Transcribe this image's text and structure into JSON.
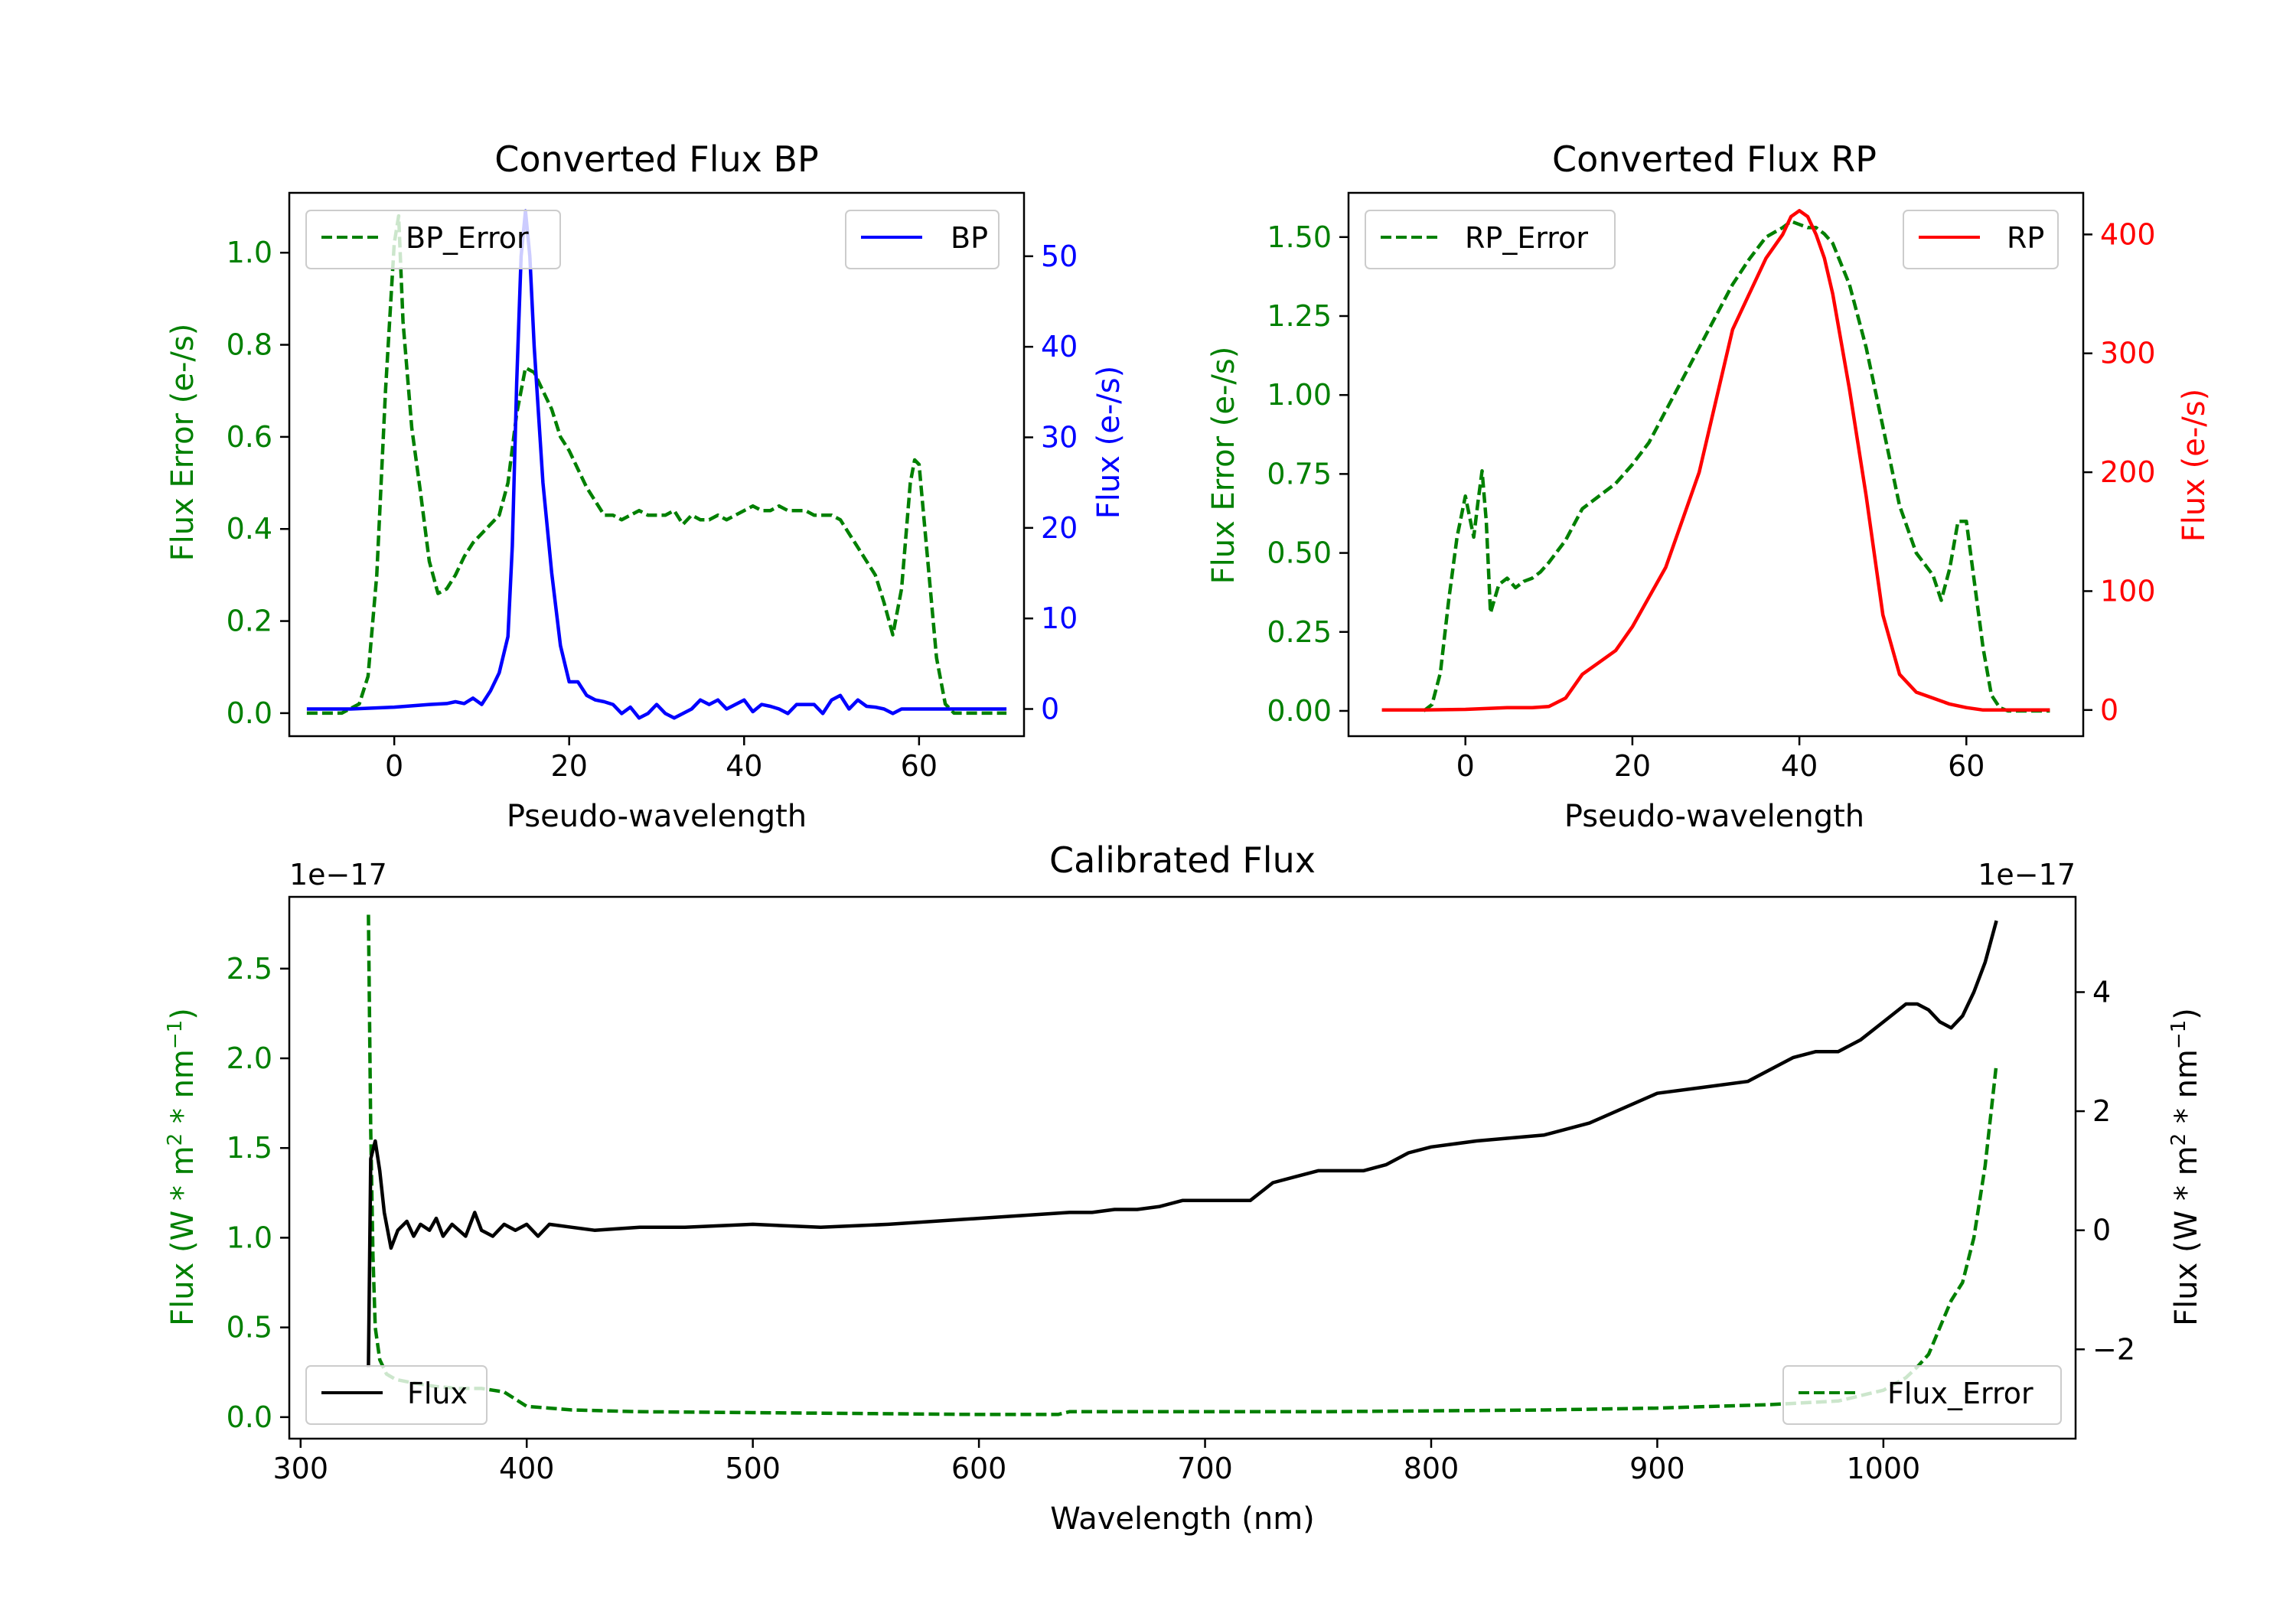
{
  "chart_data": [
    {
      "type": "line",
      "title": "Converted Flux BP",
      "xlabel": "Pseudo-wavelength",
      "ylabel_left": "Flux Error (e-/s)",
      "ylabel_right": "Flux (e-/s)",
      "xlim": [
        -12,
        72
      ],
      "ylim_left": [
        -0.05,
        1.13
      ],
      "ylim_right": [
        -3,
        57
      ],
      "xticks": [
        0,
        20,
        40,
        60
      ],
      "yticks_left": [
        0.0,
        0.2,
        0.4,
        0.6,
        0.8,
        1.0
      ],
      "yticks_right": [
        0,
        10,
        20,
        30,
        40,
        50
      ],
      "series": [
        {
          "name": "BP_Error",
          "axis": "left",
          "color": "#008000",
          "style": "dashed",
          "x": [
            -10,
            -6,
            -4,
            -3,
            -2,
            -1,
            0,
            0.5,
            1,
            2,
            3,
            4,
            5,
            6,
            7,
            8,
            9,
            10,
            11,
            12,
            13,
            14,
            15,
            16,
            17,
            18,
            19,
            20,
            21,
            22,
            23,
            24,
            25,
            26,
            27,
            28,
            29,
            30,
            31,
            32,
            33,
            34,
            35,
            36,
            37,
            38,
            39,
            40,
            41,
            42,
            43,
            44,
            45,
            46,
            47,
            48,
            49,
            50,
            51,
            52,
            53,
            54,
            55,
            56,
            57,
            58,
            59,
            59.5,
            60,
            61,
            62,
            63,
            64,
            65,
            66,
            68,
            70
          ],
          "y": [
            0,
            0,
            0.02,
            0.08,
            0.3,
            0.7,
            1.02,
            1.08,
            0.85,
            0.62,
            0.48,
            0.33,
            0.26,
            0.27,
            0.3,
            0.34,
            0.37,
            0.39,
            0.41,
            0.43,
            0.5,
            0.65,
            0.75,
            0.74,
            0.7,
            0.66,
            0.6,
            0.57,
            0.53,
            0.49,
            0.46,
            0.43,
            0.43,
            0.42,
            0.43,
            0.44,
            0.43,
            0.43,
            0.43,
            0.44,
            0.41,
            0.43,
            0.42,
            0.42,
            0.43,
            0.42,
            0.43,
            0.44,
            0.45,
            0.44,
            0.44,
            0.45,
            0.44,
            0.44,
            0.44,
            0.43,
            0.43,
            0.43,
            0.42,
            0.39,
            0.36,
            0.33,
            0.3,
            0.24,
            0.17,
            0.27,
            0.5,
            0.55,
            0.54,
            0.33,
            0.12,
            0.02,
            0.0,
            0,
            0,
            0,
            0
          ]
        },
        {
          "name": "BP",
          "axis": "right",
          "color": "#0000ff",
          "style": "solid",
          "x": [
            -10,
            -5,
            0,
            4,
            6,
            7,
            8,
            9,
            10,
            11,
            12,
            13,
            13.5,
            14,
            14.5,
            15,
            15.5,
            16,
            17,
            18,
            19,
            20,
            21,
            22,
            23,
            24,
            25,
            26,
            27,
            28,
            29,
            30,
            31,
            32,
            33,
            34,
            35,
            36,
            37,
            38,
            39,
            40,
            41,
            42,
            43,
            44,
            45,
            46,
            47,
            48,
            49,
            50,
            51,
            52,
            53,
            54,
            55,
            56,
            57,
            58,
            60,
            62,
            65,
            70
          ],
          "y": [
            0,
            0,
            0.2,
            0.5,
            0.6,
            0.8,
            0.6,
            1.2,
            0.5,
            2,
            4,
            8,
            18,
            36,
            50,
            55,
            50,
            40,
            25,
            15,
            7,
            3,
            3,
            1.5,
            1,
            0.8,
            0.5,
            -0.5,
            0.2,
            -1,
            -0.5,
            0.5,
            -0.5,
            -1,
            -0.5,
            0,
            1,
            0.5,
            1,
            0,
            0.5,
            1,
            -0.3,
            0.5,
            0.3,
            0,
            -0.5,
            0.5,
            0.5,
            0.5,
            -0.5,
            1,
            1.5,
            0,
            1,
            0.3,
            0.2,
            0,
            -0.5,
            0,
            0,
            0,
            0,
            0
          ]
        }
      ],
      "legend": [
        {
          "label": "BP_Error",
          "position": "upper left"
        },
        {
          "label": "BP",
          "position": "upper right"
        }
      ]
    },
    {
      "type": "line",
      "title": "Converted Flux RP",
      "xlabel": "Pseudo-wavelength",
      "ylabel_left": "Flux Error (e-/s)",
      "ylabel_right": "Flux (e-/s)",
      "xlim": [
        -14,
        74
      ],
      "ylim_left": [
        -0.08,
        1.64
      ],
      "ylim_right": [
        -22,
        435
      ],
      "xticks": [
        0,
        20,
        40,
        60
      ],
      "yticks_left": [
        0.0,
        0.25,
        0.5,
        0.75,
        1.0,
        1.25,
        1.5
      ],
      "yticks_right": [
        0,
        100,
        200,
        300,
        400
      ],
      "series": [
        {
          "name": "RP_Error",
          "axis": "left",
          "color": "#008000",
          "style": "dashed",
          "x": [
            -5,
            -4,
            -3,
            -2,
            -1,
            0,
            1,
            1.5,
            2,
            2.5,
            3,
            4,
            5,
            6,
            7,
            8,
            9,
            10,
            12,
            14,
            16,
            18,
            20,
            22,
            24,
            26,
            28,
            30,
            32,
            34,
            36,
            38,
            39,
            40,
            41,
            42,
            43,
            44,
            46,
            48,
            50,
            52,
            54,
            56,
            57,
            58,
            59,
            60,
            61,
            62,
            63,
            64,
            65,
            70
          ],
          "y": [
            0,
            0.02,
            0.12,
            0.35,
            0.55,
            0.68,
            0.55,
            0.66,
            0.76,
            0.6,
            0.31,
            0.4,
            0.42,
            0.39,
            0.41,
            0.42,
            0.44,
            0.47,
            0.54,
            0.64,
            0.68,
            0.72,
            0.78,
            0.85,
            0.95,
            1.05,
            1.15,
            1.25,
            1.35,
            1.43,
            1.5,
            1.53,
            1.55,
            1.54,
            1.53,
            1.53,
            1.51,
            1.48,
            1.35,
            1.15,
            0.9,
            0.65,
            0.5,
            0.43,
            0.35,
            0.45,
            0.6,
            0.6,
            0.4,
            0.2,
            0.05,
            0.01,
            0,
            0
          ]
        },
        {
          "name": "RP",
          "axis": "right",
          "color": "#ff0000",
          "style": "solid",
          "x": [
            -10,
            -5,
            0,
            5,
            8,
            10,
            12,
            14,
            16,
            18,
            20,
            22,
            24,
            26,
            28,
            30,
            32,
            34,
            36,
            38,
            39,
            40,
            41,
            42,
            43,
            44,
            45,
            46,
            48,
            50,
            52,
            54,
            56,
            58,
            60,
            62,
            65,
            70
          ],
          "y": [
            0,
            0,
            0.5,
            2,
            2,
            3,
            10,
            30,
            40,
            50,
            70,
            95,
            120,
            160,
            200,
            260,
            320,
            350,
            380,
            400,
            415,
            420,
            415,
            400,
            380,
            350,
            310,
            270,
            180,
            80,
            30,
            15,
            10,
            5,
            2,
            0,
            0,
            0
          ]
        }
      ],
      "legend": [
        {
          "label": "RP_Error",
          "position": "upper left"
        },
        {
          "label": "RP",
          "position": "upper right"
        }
      ]
    },
    {
      "type": "line",
      "title": "Calibrated Flux",
      "xlabel": "Wavelength (nm)",
      "ylabel_left": "Flux (W * m$^2$ * nm$^{-1}$)",
      "ylabel_right": "Flux (W * m$^2$ * nm$^{-1}$)",
      "offset_left": "1e−17",
      "offset_right": "1e−17",
      "xlim": [
        295,
        1085
      ],
      "ylim_left": [
        -0.12,
        2.9
      ],
      "ylim_right": [
        -3.5,
        5.6
      ],
      "xticks": [
        300,
        400,
        500,
        600,
        700,
        800,
        900,
        1000
      ],
      "yticks_left": [
        0.0,
        0.5,
        1.0,
        1.5,
        2.0,
        2.5
      ],
      "yticks_right": [
        -2,
        0,
        2,
        4
      ],
      "series": [
        {
          "name": "Flux_Error",
          "axis": "left",
          "color": "#008000",
          "style": "dashed",
          "x": [
            330,
            331,
            332,
            333,
            335,
            338,
            342,
            350,
            360,
            370,
            380,
            385,
            390,
            400,
            410,
            420,
            450,
            500,
            550,
            600,
            635,
            640,
            700,
            750,
            800,
            850,
            900,
            950,
            980,
            1000,
            1010,
            1015,
            1020,
            1025,
            1030,
            1035,
            1040,
            1045,
            1050
          ],
          "y": [
            2.8,
            1.6,
            0.9,
            0.5,
            0.32,
            0.24,
            0.21,
            0.19,
            0.17,
            0.16,
            0.16,
            0.15,
            0.14,
            0.06,
            0.05,
            0.04,
            0.03,
            0.025,
            0.02,
            0.015,
            0.015,
            0.03,
            0.03,
            0.03,
            0.035,
            0.04,
            0.05,
            0.07,
            0.09,
            0.15,
            0.22,
            0.28,
            0.35,
            0.5,
            0.65,
            0.75,
            1.0,
            1.4,
            1.97
          ]
        },
        {
          "name": "Flux",
          "axis": "right",
          "color": "#000000",
          "style": "solid",
          "x": [
            330,
            331,
            333,
            335,
            337,
            340,
            343,
            347,
            350,
            353,
            357,
            360,
            363,
            367,
            370,
            373,
            377,
            380,
            385,
            390,
            395,
            400,
            405,
            410,
            420,
            430,
            450,
            470,
            500,
            530,
            560,
            600,
            640,
            650,
            660,
            670,
            680,
            690,
            700,
            710,
            720,
            730,
            740,
            750,
            760,
            770,
            780,
            790,
            800,
            820,
            850,
            870,
            900,
            920,
            940,
            950,
            960,
            970,
            980,
            990,
            1000,
            1010,
            1015,
            1020,
            1025,
            1030,
            1035,
            1040,
            1045,
            1050
          ],
          "y": [
            -2.3,
            1.2,
            1.5,
            1.0,
            0.3,
            -0.3,
            0.0,
            0.15,
            -0.1,
            0.1,
            0.0,
            0.2,
            -0.1,
            0.1,
            0.0,
            -0.1,
            0.3,
            0.0,
            -0.1,
            0.1,
            0.0,
            0.1,
            -0.1,
            0.1,
            0.05,
            0.0,
            0.05,
            0.05,
            0.1,
            0.05,
            0.1,
            0.2,
            0.3,
            0.3,
            0.35,
            0.35,
            0.4,
            0.5,
            0.5,
            0.5,
            0.5,
            0.8,
            0.9,
            1.0,
            1.0,
            1.0,
            1.1,
            1.3,
            1.4,
            1.5,
            1.6,
            1.8,
            2.3,
            2.4,
            2.5,
            2.7,
            2.9,
            3.0,
            3.0,
            3.2,
            3.5,
            3.8,
            3.8,
            3.7,
            3.5,
            3.4,
            3.6,
            4.0,
            4.5,
            5.2
          ]
        }
      ],
      "legend": [
        {
          "label": "Flux",
          "position": "lower left"
        },
        {
          "label": "Flux_Error",
          "position": "lower right"
        }
      ]
    }
  ]
}
